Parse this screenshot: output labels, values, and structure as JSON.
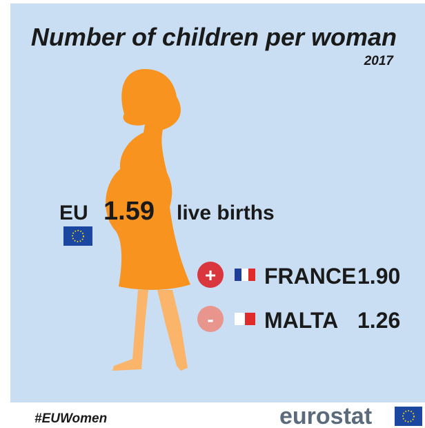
{
  "title": "Number of children per woman",
  "year": "2017",
  "eu": {
    "label": "EU",
    "value": "1.59",
    "unit": "live births"
  },
  "highest": {
    "sign": "+",
    "country": "FRANCE",
    "value": "1.90"
  },
  "lowest": {
    "sign": "-",
    "country": "MALTA",
    "value": "1.26"
  },
  "footer": {
    "hashtag": "#EUWomen",
    "brand": "eurostat"
  }
}
